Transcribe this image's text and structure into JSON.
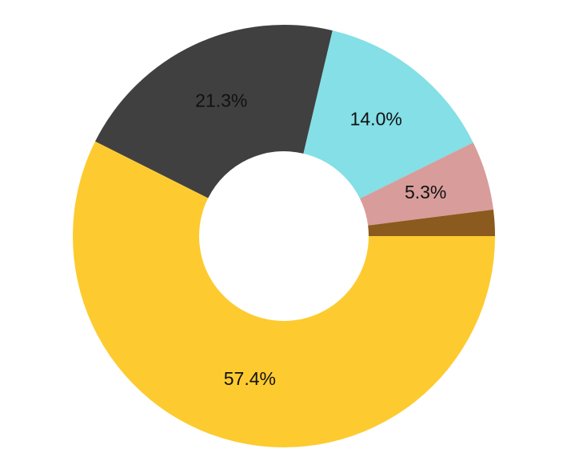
{
  "chart_data": {
    "type": "pie",
    "values": [
      57.4,
      21.3,
      14.0,
      5.3,
      2.0
    ],
    "value_labels": [
      "57.4%",
      "21.3%",
      "14.0%",
      "5.3%",
      null
    ],
    "colors": [
      "#fdcb30",
      "#404040",
      "#84dfe6",
      "#d89c9a",
      "#8b5a1e"
    ],
    "donut": true
  }
}
